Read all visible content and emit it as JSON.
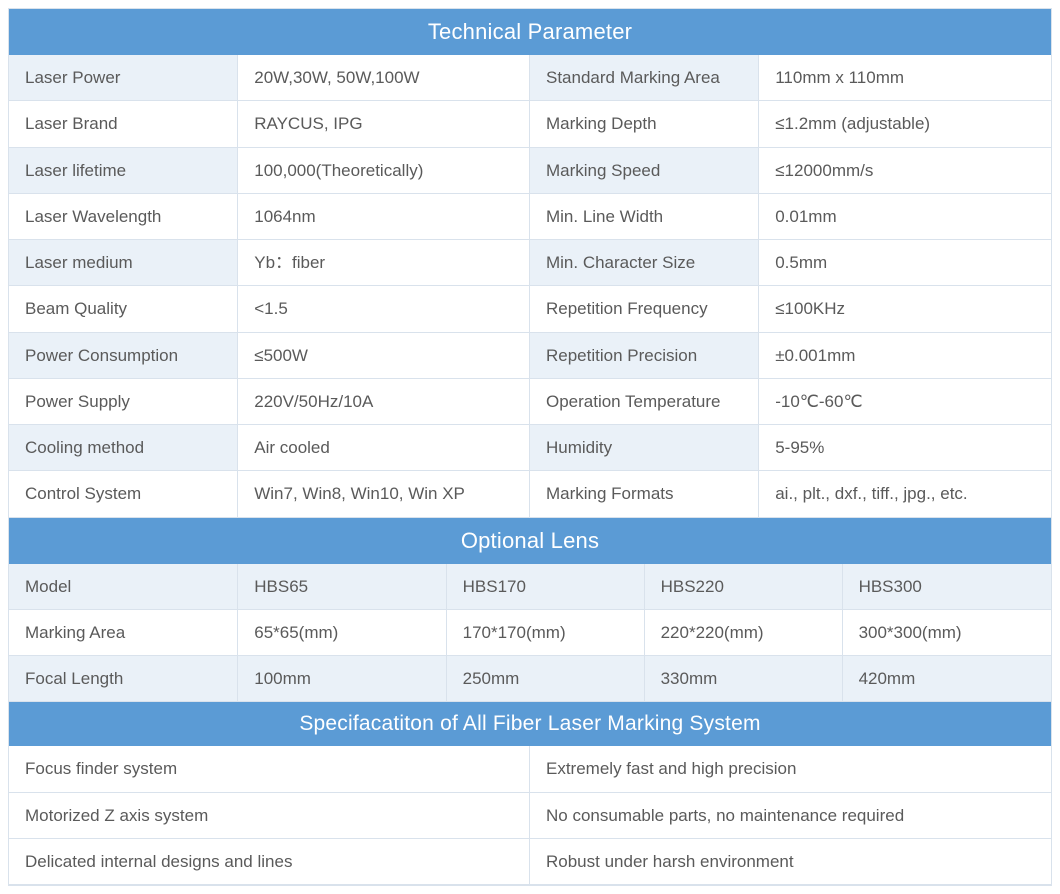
{
  "colors": {
    "header_bg": "#5b9bd5",
    "header_text": "#ffffff",
    "band_light": "#eaf1f8",
    "band_white": "#ffffff",
    "text": "#5a5a5a",
    "border": "#d9e2ec"
  },
  "tech": {
    "title": "Technical Parameter",
    "rows": [
      {
        "l1": "Laser Power",
        "v1": "20W,30W, 50W,100W",
        "l2": "Standard Marking Area",
        "v2": "110mm x 110mm"
      },
      {
        "l1": "Laser Brand",
        "v1": "RAYCUS, IPG",
        "l2": "Marking Depth",
        "v2": "≤1.2mm (adjustable)"
      },
      {
        "l1": "Laser lifetime",
        "v1": "100,000(Theoretically)",
        "l2": "Marking Speed",
        "v2": "≤12000mm/s"
      },
      {
        "l1": "Laser Wavelength",
        "v1": "1064nm",
        "l2": "Min. Line Width",
        "v2": "0.01mm"
      },
      {
        "l1": "Laser medium",
        "v1": "Yb：fiber",
        "l2": "Min. Character Size",
        "v2": "0.5mm"
      },
      {
        "l1": "Beam Quality",
        "v1": "<1.5",
        "l2": "Repetition Frequency",
        "v2": "≤100KHz"
      },
      {
        "l1": "Power Consumption",
        "v1": "≤500W",
        "l2": "Repetition Precision",
        "v2": "±0.001mm"
      },
      {
        "l1": "Power Supply",
        "v1": "220V/50Hz/10A",
        "l2": "Operation Temperature",
        "v2": "-10℃-60℃"
      },
      {
        "l1": "Cooling method",
        "v1": "Air cooled",
        "l2": "Humidity",
        "v2": "5-95%"
      },
      {
        "l1": "Control System",
        "v1": "Win7, Win8, Win10, Win XP",
        "l2": "Marking Formats",
        "v2": "ai., plt., dxf., tiff., jpg., etc."
      }
    ]
  },
  "lens": {
    "title": "Optional Lens",
    "rows": [
      {
        "c1": "Model",
        "c2": "HBS65",
        "c3": "HBS170",
        "c4": "HBS220",
        "c5": "HBS300"
      },
      {
        "c1": "Marking Area",
        "c2": "65*65(mm)",
        "c3": "170*170(mm)",
        "c4": "220*220(mm)",
        "c5": "300*300(mm)"
      },
      {
        "c1": "Focal Length",
        "c2": "100mm",
        "c3": "250mm",
        "c4": "330mm",
        "c5": "420mm"
      }
    ]
  },
  "spec": {
    "title": "Specifacatiton of All Fiber Laser Marking System",
    "rows": [
      {
        "c1": "Focus finder system",
        "c2": "Extremely fast and high precision"
      },
      {
        "c1": "Motorized Z axis system",
        "c2": "No consumable parts, no maintenance required"
      },
      {
        "c1": "Delicated internal designs and lines",
        "c2": "Robust under harsh environment"
      }
    ]
  }
}
